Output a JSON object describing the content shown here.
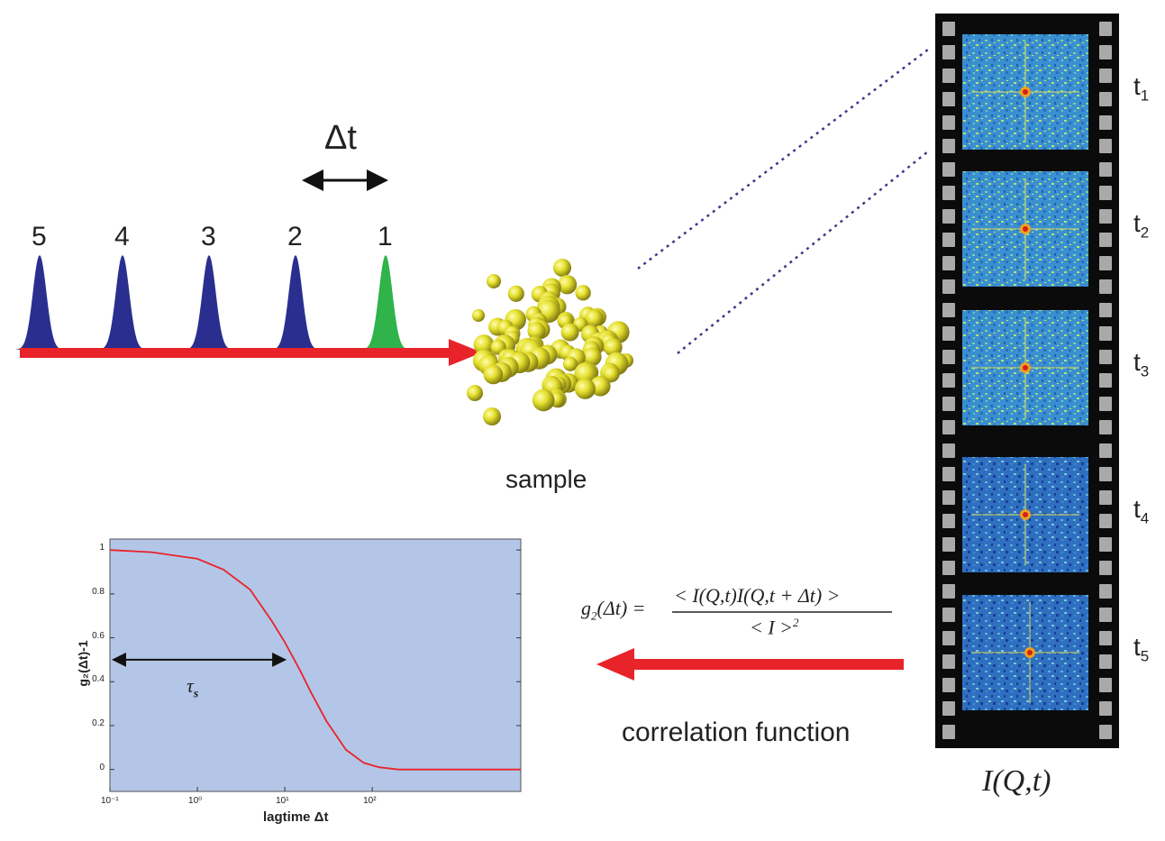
{
  "delta_t_label": "Δt",
  "pulses": [
    {
      "label": "5",
      "color": "#2a2f8f"
    },
    {
      "label": "4",
      "color": "#2a2f8f"
    },
    {
      "label": "3",
      "color": "#2a2f8f"
    },
    {
      "label": "2",
      "color": "#2a2f8f"
    },
    {
      "label": "1",
      "color": "#2fb34a"
    }
  ],
  "beam_color": "#e8232a",
  "sample_label": "sample",
  "sample_color": "#e4df2c",
  "frames": [
    {
      "t": "t",
      "sub": "1"
    },
    {
      "t": "t",
      "sub": "2"
    },
    {
      "t": "t",
      "sub": "3"
    },
    {
      "t": "t",
      "sub": "4"
    },
    {
      "t": "t",
      "sub": "5"
    }
  ],
  "film_caption": "I(Q,t)",
  "formula": {
    "lhs": "g",
    "lhs_sub": "2",
    "lhs_arg": "(Δt) =",
    "numerator": "< I(Q,t)I(Q,t + Δt) >",
    "denominator": "< I >",
    "denominator_sup": "2"
  },
  "correlation_label": "correlation function",
  "chart_data": {
    "type": "line",
    "xscale": "log",
    "xlabel": "lagtime Δt",
    "ylabel": "g₂(Δt)-1",
    "xlim": [
      0.1,
      5000
    ],
    "ylim": [
      -0.1,
      1.05
    ],
    "xticks": [
      "10⁻¹",
      "10⁰",
      "10¹",
      "10²"
    ],
    "yticks": [
      "0",
      "0.2",
      "0.4",
      "0.6",
      "0.8",
      "1"
    ],
    "series": [
      {
        "x": [
          0.1,
          0.3,
          1,
          2,
          4,
          7,
          10,
          15,
          20,
          30,
          50,
          80,
          120,
          200,
          500,
          1000,
          5000
        ],
        "y": [
          1.0,
          0.99,
          0.96,
          0.91,
          0.82,
          0.68,
          0.58,
          0.45,
          0.35,
          0.22,
          0.09,
          0.03,
          0.01,
          0.0,
          0.0,
          0.0,
          0.0
        ]
      }
    ],
    "annotation": {
      "text": "τ",
      "sub": "s",
      "y": 0.5,
      "x_end": 10
    },
    "background": "#b4c6e7",
    "line_color": "#e8232a",
    "grid": false
  }
}
